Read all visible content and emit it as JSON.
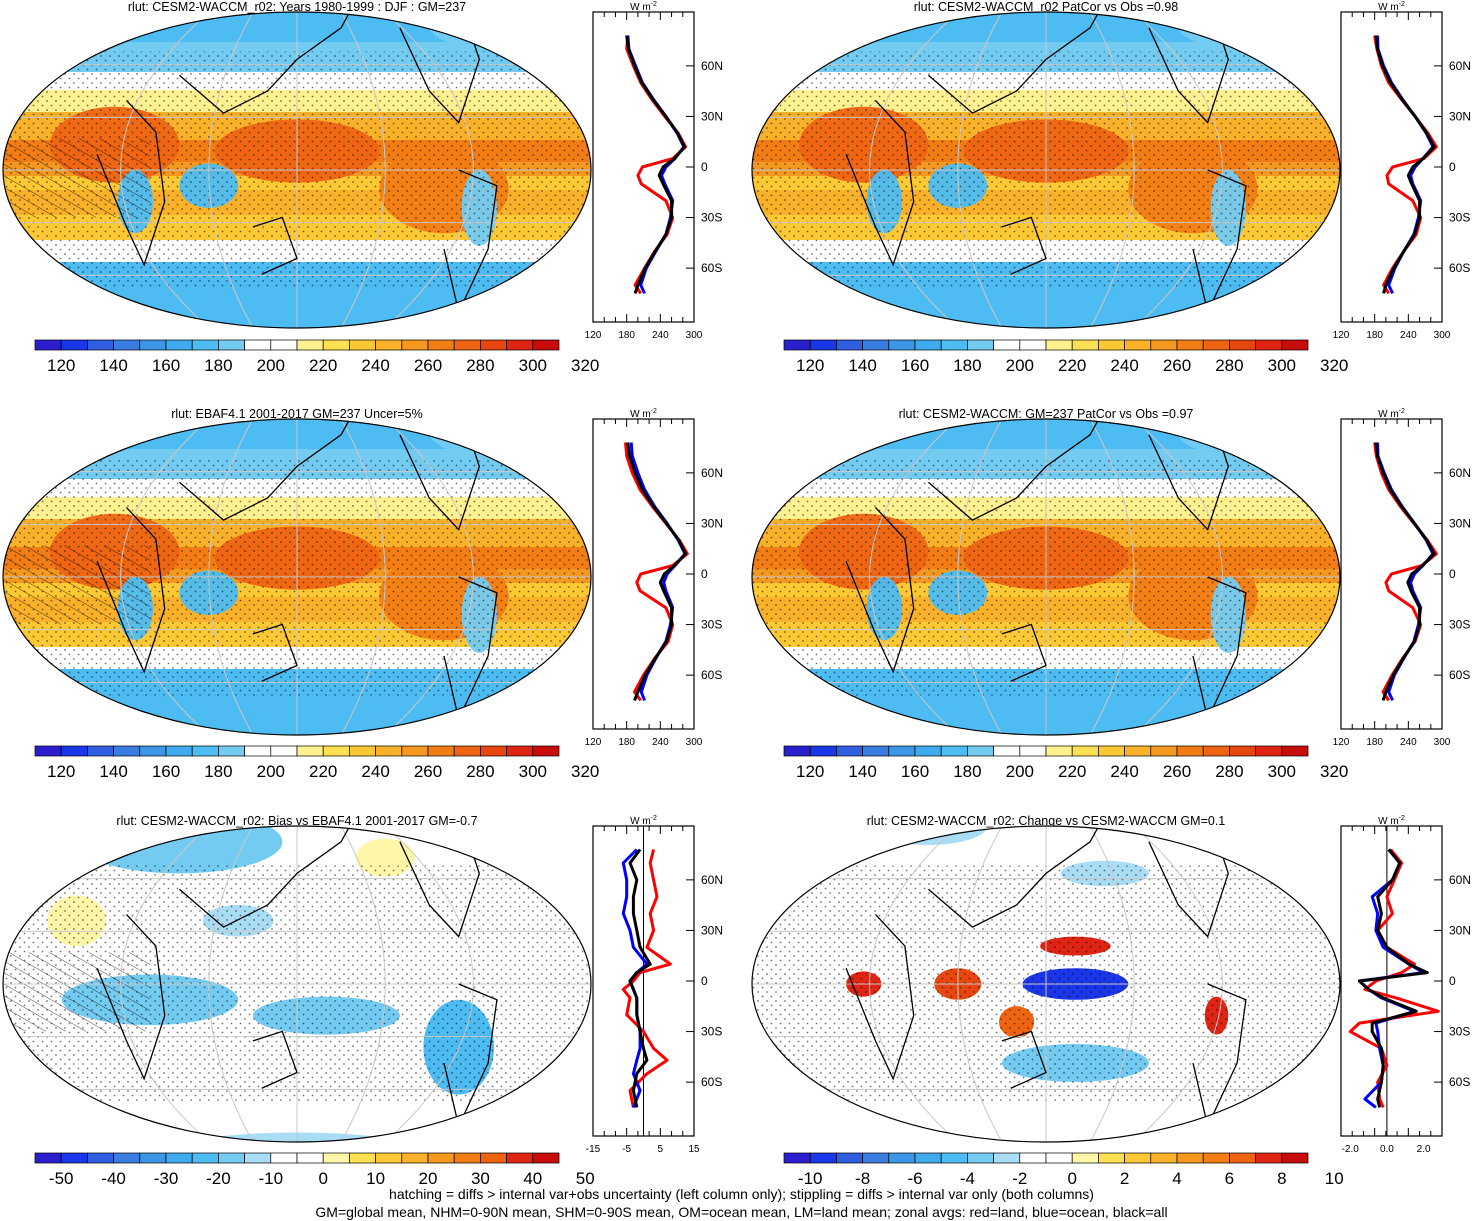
{
  "colors": {
    "main_scale": [
      "#2a1ecf",
      "#1a36e8",
      "#2f5ee0",
      "#3a7de0",
      "#3b96e6",
      "#40aaee",
      "#4dbcf2",
      "#73cbf2",
      "#ffffff",
      "#ffffff",
      "#fff090",
      "#ffe052",
      "#fcc833",
      "#f9b12a",
      "#f5981f",
      "#f27d14",
      "#ee6412",
      "#e8460f",
      "#e02414",
      "#c80c0c"
    ],
    "diff_scale": [
      "#2a1ecf",
      "#1a36e8",
      "#2f5ee0",
      "#3a7de0",
      "#3b96e6",
      "#40aaee",
      "#4dbcf2",
      "#73cbf2",
      "#a9dcf5",
      "#ffffff",
      "#ffffff",
      "#fff6a8",
      "#ffe052",
      "#fcc833",
      "#f9b12a",
      "#f5981f",
      "#f27d14",
      "#ee6412",
      "#e02414",
      "#c80c0c"
    ],
    "land": "#ff0000",
    "ocean": "#0000ff",
    "all": "#000000"
  },
  "footer": {
    "line1": "hatching = diffs > internal var+obs uncertainty (left column only); stippling = diffs > internal var only (both columns)",
    "line2": "GM=global mean, NHM=0-90N mean, SHM=0-90S mean, OM=ocean mean, LM=land mean; zonal avgs: red=land, blue=ocean, black=all"
  },
  "chart_data": [
    {
      "type": "heatmap",
      "title": "rlut: CESM2-WACCM_r02: Years 1980-1999 : DJF : GM=237",
      "colorbar_ticks": [
        "120",
        "140",
        "160",
        "180",
        "200",
        "220",
        "240",
        "260",
        "280",
        "300",
        "320"
      ],
      "zonal": {
        "unit": "W m-2",
        "xlim": [
          120,
          300
        ],
        "xticks": [
          "120",
          "180",
          "240",
          "300"
        ],
        "lat_ticks": [
          "60N",
          "30N",
          "0",
          "30S",
          "60S"
        ],
        "lat": [
          78,
          70,
          60,
          50,
          40,
          30,
          20,
          12,
          5,
          0,
          -5,
          -10,
          -20,
          -30,
          -40,
          -50,
          -60,
          -70,
          -75
        ],
        "series": [
          {
            "name": "land",
            "values": [
              182,
              180,
              192,
              205,
              225,
              248,
              272,
              285,
              262,
              208,
              200,
              206,
              250,
              262,
              252,
              230,
              212,
              195,
              205
            ]
          },
          {
            "name": "ocean",
            "values": [
              182,
              184,
              196,
              208,
              228,
              250,
              270,
              282,
              266,
              250,
              242,
              248,
              262,
              258,
              250,
              232,
              215,
              205,
              212
            ]
          },
          {
            "name": "all",
            "values": [
              180,
              183,
              194,
              207,
              227,
              250,
              271,
              283,
              265,
              245,
              238,
              245,
              260,
              260,
              250,
              231,
              213,
              200,
              195
            ]
          }
        ]
      }
    },
    {
      "type": "heatmap",
      "title": "rlut: CESM2-WACCM_r02 PatCor vs Obs =0.98",
      "colorbar_ticks": [
        "120",
        "140",
        "160",
        "180",
        "200",
        "220",
        "240",
        "260",
        "280",
        "300",
        "320"
      ],
      "zonal": {
        "unit": "W m-2",
        "xlim": [
          120,
          300
        ],
        "xticks": [
          "120",
          "180",
          "240",
          "300"
        ],
        "lat_ticks": [
          "60N",
          "30N",
          "0",
          "30S",
          "60S"
        ],
        "lat": [
          78,
          70,
          60,
          50,
          40,
          30,
          20,
          12,
          5,
          0,
          -5,
          -10,
          -20,
          -30,
          -40,
          -50,
          -60,
          -70,
          -75
        ],
        "series": [
          {
            "name": "land",
            "values": [
              180,
              184,
              192,
              205,
              228,
              252,
              275,
              290,
              268,
              212,
              202,
              205,
              248,
              262,
              254,
              232,
              212,
              196,
              205
            ]
          },
          {
            "name": "ocean",
            "values": [
              185,
              186,
              196,
              210,
              230,
              252,
              272,
              284,
              266,
              252,
              244,
              248,
              262,
              258,
              250,
              232,
              216,
              205,
              212
            ]
          },
          {
            "name": "all",
            "values": [
              182,
              185,
              194,
              208,
              229,
              252,
              273,
              286,
              266,
              248,
              240,
              246,
              260,
              260,
              251,
              232,
              214,
              200,
              196
            ]
          }
        ]
      }
    },
    {
      "type": "heatmap",
      "title": "rlut: EBAF4.1 2001-2017 GM=237 Uncer=5%",
      "colorbar_ticks": [
        "120",
        "140",
        "160",
        "180",
        "200",
        "220",
        "240",
        "260",
        "280",
        "300",
        "320"
      ],
      "zonal": {
        "unit": "W m-2",
        "xlim": [
          120,
          300
        ],
        "xticks": [
          "120",
          "180",
          "240",
          "300"
        ],
        "lat_ticks": [
          "60N",
          "30N",
          "0",
          "30S",
          "60S"
        ],
        "lat": [
          78,
          70,
          60,
          50,
          40,
          30,
          20,
          12,
          5,
          0,
          -5,
          -10,
          -20,
          -30,
          -40,
          -50,
          -60,
          -70,
          -75
        ],
        "series": [
          {
            "name": "land",
            "values": [
              178,
              180,
              190,
              204,
              226,
              250,
              274,
              288,
              262,
              205,
              198,
              204,
              250,
              262,
              254,
              230,
              210,
              194,
              205
            ]
          },
          {
            "name": "ocean",
            "values": [
              188,
              190,
              200,
              212,
              230,
              252,
              272,
              284,
              266,
              252,
              246,
              250,
              262,
              258,
              250,
              232,
              216,
              206,
              212
            ]
          },
          {
            "name": "all",
            "values": [
              182,
              185,
              195,
              208,
              228,
              251,
              273,
              285,
              265,
              247,
              240,
              246,
              260,
              260,
              251,
              231,
              213,
              200,
              194
            ]
          }
        ]
      }
    },
    {
      "type": "heatmap",
      "title": "rlut: CESM2-WACCM: GM=237 PatCor vs Obs =0.97",
      "colorbar_ticks": [
        "120",
        "140",
        "160",
        "180",
        "200",
        "220",
        "240",
        "260",
        "280",
        "300",
        "320"
      ],
      "zonal": {
        "unit": "W m-2",
        "xlim": [
          120,
          300
        ],
        "xticks": [
          "120",
          "180",
          "240",
          "300"
        ],
        "lat_ticks": [
          "60N",
          "30N",
          "0",
          "30S",
          "60S"
        ],
        "lat": [
          78,
          70,
          60,
          50,
          40,
          30,
          20,
          12,
          5,
          0,
          -5,
          -10,
          -20,
          -30,
          -40,
          -50,
          -60,
          -70,
          -75
        ],
        "series": [
          {
            "name": "land",
            "values": [
              180,
              183,
              192,
              205,
              226,
              250,
              274,
              290,
              264,
              210,
              200,
              205,
              248,
              262,
              252,
              230,
              211,
              195,
              205
            ]
          },
          {
            "name": "ocean",
            "values": [
              185,
              186,
              197,
              210,
              229,
              251,
              272,
              284,
              266,
              251,
              244,
              248,
              262,
              258,
              250,
              232,
              215,
              205,
              212
            ]
          },
          {
            "name": "all",
            "values": [
              182,
              185,
              195,
              208,
              228,
              251,
              273,
              286,
              265,
              246,
              239,
              245,
              260,
              260,
              251,
              231,
              213,
              200,
              195
            ]
          }
        ]
      }
    },
    {
      "type": "heatmap",
      "title": "rlut: CESM2-WACCM_r02: Bias vs EBAF4.1 2001-2017 GM=-0.7",
      "colorbar_ticks": [
        "-50",
        "-40",
        "-30",
        "-20",
        "-10",
        "0",
        "10",
        "20",
        "30",
        "40",
        "50"
      ],
      "zonal": {
        "unit": "W m-2",
        "xlim": [
          -15,
          15
        ],
        "xticks": [
          "-15",
          "-5",
          "5",
          "15"
        ],
        "lat_ticks": [
          "60N",
          "30N",
          "0",
          "30S",
          "60S"
        ],
        "lat": [
          78,
          70,
          60,
          50,
          40,
          30,
          20,
          10,
          5,
          0,
          -5,
          -10,
          -20,
          -30,
          -40,
          -47,
          -55,
          -65,
          -75
        ],
        "series": [
          {
            "name": "land",
            "values": [
              3,
              2,
              3,
              4,
              2,
              3,
              1,
              8,
              -1,
              -3,
              -6,
              -4,
              -5,
              0,
              3,
              7,
              1,
              -4,
              -3
            ]
          },
          {
            "name": "ocean",
            "values": [
              -2,
              -6,
              -5,
              -5,
              -6,
              -4,
              -3,
              1,
              -2,
              -4,
              -3,
              -2,
              -2,
              -1,
              -1,
              -2,
              -3,
              -1,
              -3
            ]
          },
          {
            "name": "all",
            "values": [
              -1,
              -4,
              -2,
              -3,
              -3,
              -2,
              -1,
              2,
              -2,
              -4,
              -3,
              -2,
              -2,
              -1,
              0,
              1,
              -2,
              -3,
              -2
            ]
          }
        ]
      }
    },
    {
      "type": "heatmap",
      "title": "rlut: CESM2-WACCM_r02: Change vs CESM2-WACCM GM=0.1",
      "colorbar_ticks": [
        "-10",
        "-8",
        "-6",
        "-4",
        "-2",
        "0",
        "2",
        "4",
        "6",
        "8",
        "10"
      ],
      "zonal": {
        "unit": "W m-2",
        "xlim": [
          -2.5,
          3
        ],
        "xticks": [
          "-2.0",
          "0.0",
          "2.0"
        ],
        "lat_ticks": [
          "60N",
          "30N",
          "0",
          "30S",
          "60S"
        ],
        "lat": [
          78,
          70,
          60,
          50,
          40,
          30,
          20,
          10,
          5,
          0,
          -5,
          -10,
          -18,
          -25,
          -30,
          -40,
          -50,
          -60,
          -70,
          -75
        ],
        "series": [
          {
            "name": "land",
            "values": [
              0.2,
              0.8,
              0.4,
              0.0,
              0.3,
              -0.5,
              0.0,
              1.5,
              0.8,
              -0.6,
              -1.2,
              0.5,
              2.8,
              -1.5,
              -2.0,
              -0.3,
              0.0,
              -0.5,
              -0.4,
              -0.2
            ]
          },
          {
            "name": "ocean",
            "values": [
              0.1,
              0.7,
              0.3,
              -0.8,
              -0.5,
              -0.6,
              -0.2,
              1.2,
              2.0,
              -1.5,
              -1.0,
              -0.3,
              1.5,
              -0.6,
              -0.5,
              -0.4,
              -0.2,
              -0.3,
              -1.2,
              -0.6
            ]
          },
          {
            "name": "all",
            "values": [
              0.1,
              0.7,
              0.3,
              -0.5,
              -0.3,
              -0.5,
              0.0,
              1.2,
              2.2,
              -1.5,
              -1.0,
              -0.2,
              1.6,
              -0.8,
              -0.8,
              -0.3,
              -0.2,
              -0.3,
              -0.5,
              -0.4
            ]
          }
        ]
      }
    }
  ]
}
